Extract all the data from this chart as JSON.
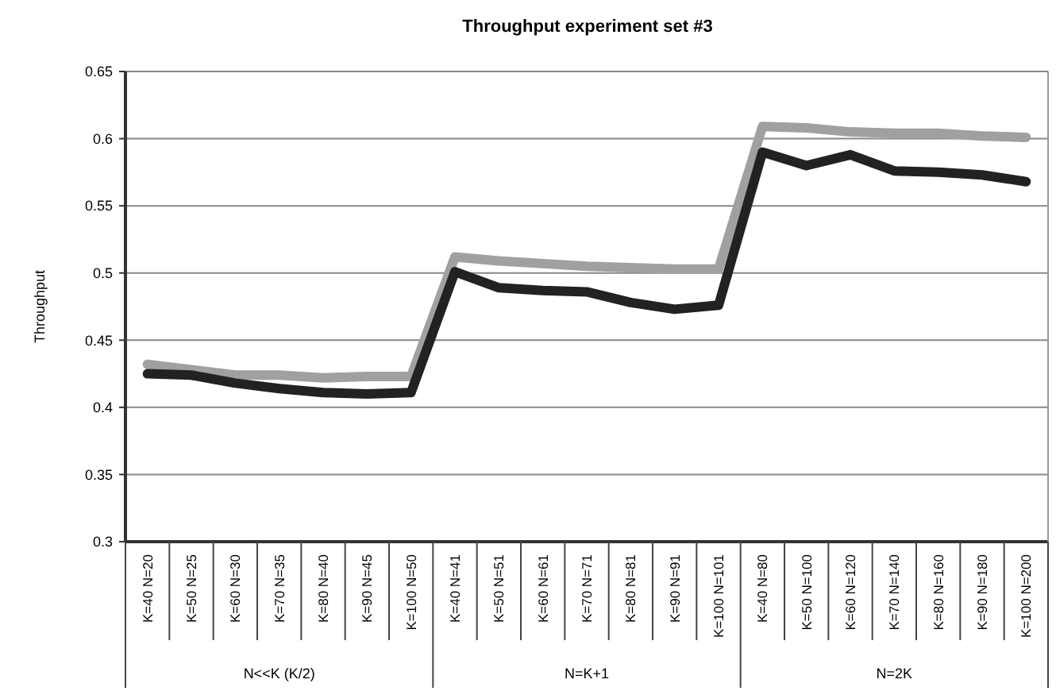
{
  "chart_data": {
    "type": "line",
    "title": "Throughput experiment set #3",
    "ylabel": "Throughput",
    "categories": [
      "K=40 N=20",
      "K=50 N=25",
      "K=60 N=30",
      "K=70 N=35",
      "K=80 N=40",
      "K=90 N=45",
      "K=100 N=50",
      "K=40 N=41",
      "K=50 N=51",
      "K=60 N=61",
      "K=70 N=71",
      "K=80 N=81",
      "K=90 N=91",
      "K=100 N=101",
      "K=40 N=80",
      "K=50 N=100",
      "K=60 N=120",
      "K=70 N=140",
      "K=80 N=160",
      "K=90 N=180",
      "K=100 N=200"
    ],
    "series": [
      {
        "color": "#a0a0a0",
        "values": [
          0.432,
          0.428,
          0.424,
          0.424,
          0.422,
          0.423,
          0.423,
          0.512,
          0.509,
          0.507,
          0.505,
          0.504,
          0.503,
          0.503,
          0.609,
          0.608,
          0.605,
          0.604,
          0.604,
          0.602,
          0.601
        ]
      },
      {
        "color": "#222222",
        "values": [
          0.425,
          0.424,
          0.418,
          0.414,
          0.411,
          0.41,
          0.411,
          0.501,
          0.489,
          0.487,
          0.486,
          0.478,
          0.473,
          0.476,
          0.59,
          0.58,
          0.588,
          0.576,
          0.575,
          0.573,
          0.568
        ]
      }
    ],
    "ylim": [
      0.3,
      0.65
    ],
    "yticks": [
      0.3,
      0.35,
      0.4,
      0.45,
      0.5,
      0.55,
      0.6,
      0.65
    ],
    "grid": "y",
    "annotations": [
      "N<<K (K/2)",
      "N=K+1",
      "N=2K"
    ]
  }
}
